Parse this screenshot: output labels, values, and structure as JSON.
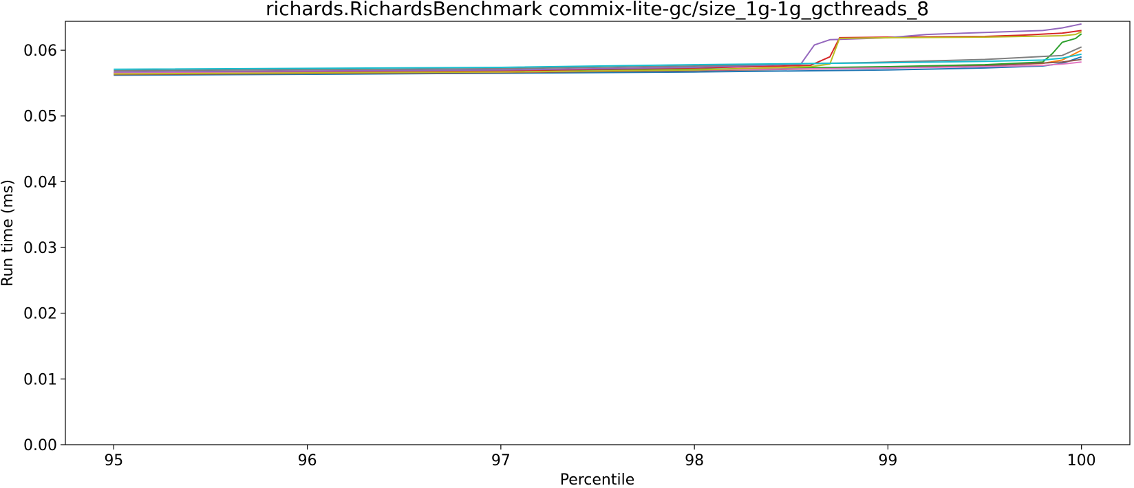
{
  "chart_data": {
    "type": "line",
    "title": "richards.RichardsBenchmark commix-lite-gc/size_1g-1g_gcthreads_8",
    "xlabel": "Percentile",
    "ylabel": "Run time (ms)",
    "xlim": [
      94.75,
      100.25
    ],
    "ylim": [
      0.0,
      0.0644
    ],
    "xticks": [
      95,
      96,
      97,
      98,
      99,
      100
    ],
    "xtick_labels": [
      "95",
      "96",
      "97",
      "98",
      "99",
      "100"
    ],
    "yticks": [
      0.0,
      0.01,
      0.02,
      0.03,
      0.04,
      0.05,
      0.06
    ],
    "ytick_labels": [
      "0.00",
      "0.01",
      "0.02",
      "0.03",
      "0.04",
      "0.05",
      "0.06"
    ],
    "grid": false,
    "legend": "none",
    "series": [
      {
        "color": "#1f77b4",
        "x": [
          95,
          97,
          98,
          99,
          99.5,
          99.8,
          99.9,
          100
        ],
        "y": [
          0.0562,
          0.0565,
          0.0567,
          0.057,
          0.0573,
          0.0576,
          0.058,
          0.059
        ]
      },
      {
        "color": "#ff7f0e",
        "x": [
          95,
          97,
          98,
          99,
          99.5,
          99.8,
          99.9,
          100
        ],
        "y": [
          0.0564,
          0.0567,
          0.057,
          0.0574,
          0.0577,
          0.058,
          0.0585,
          0.06
        ]
      },
      {
        "color": "#2ca02c",
        "x": [
          95,
          97,
          98,
          99,
          99.5,
          99.8,
          99.85,
          99.9,
          99.97,
          100
        ],
        "y": [
          0.0565,
          0.0568,
          0.0571,
          0.0575,
          0.0578,
          0.0582,
          0.0595,
          0.0612,
          0.0618,
          0.0625
        ]
      },
      {
        "color": "#d62728",
        "x": [
          95,
          97,
          98,
          98.6,
          98.7,
          98.75,
          99,
          99.5,
          99.7,
          99.9,
          100
        ],
        "y": [
          0.0566,
          0.0569,
          0.0573,
          0.0577,
          0.059,
          0.0619,
          0.062,
          0.0621,
          0.0623,
          0.0626,
          0.063
        ]
      },
      {
        "color": "#9467bd",
        "x": [
          95,
          97,
          98,
          98.55,
          98.62,
          98.7,
          99,
          99.2,
          99.5,
          99.8,
          99.9,
          100
        ],
        "y": [
          0.0567,
          0.057,
          0.0574,
          0.0579,
          0.0608,
          0.0616,
          0.0619,
          0.0624,
          0.0627,
          0.063,
          0.0634,
          0.064
        ]
      },
      {
        "color": "#8c564b",
        "x": [
          95,
          97,
          98,
          99,
          99.5,
          99.7,
          99.9,
          100
        ],
        "y": [
          0.0563,
          0.0566,
          0.0569,
          0.0573,
          0.0576,
          0.0579,
          0.0582,
          0.0586
        ]
      },
      {
        "color": "#e377c2",
        "x": [
          95,
          97,
          98,
          99,
          99.5,
          99.8,
          99.9,
          100
        ],
        "y": [
          0.0565,
          0.0567,
          0.057,
          0.0573,
          0.0575,
          0.0577,
          0.0579,
          0.0582
        ]
      },
      {
        "color": "#7f7f7f",
        "x": [
          95,
          97,
          98,
          99,
          99.5,
          99.7,
          99.9,
          100
        ],
        "y": [
          0.0569,
          0.0572,
          0.0576,
          0.0582,
          0.0586,
          0.0589,
          0.0592,
          0.0605
        ]
      },
      {
        "color": "#bcbd22",
        "x": [
          95,
          97,
          98,
          98.6,
          98.7,
          98.75,
          99,
          99.5,
          99.7,
          99.9,
          99.97,
          100
        ],
        "y": [
          0.0564,
          0.0567,
          0.057,
          0.0575,
          0.0579,
          0.0618,
          0.0619,
          0.062,
          0.0621,
          0.0622,
          0.0624,
          0.0628
        ]
      },
      {
        "color": "#17becf",
        "x": [
          95,
          97,
          98,
          99,
          99.5,
          99.8,
          99.9,
          100
        ],
        "y": [
          0.0571,
          0.0574,
          0.0578,
          0.0581,
          0.0583,
          0.0585,
          0.0588,
          0.0594
        ]
      }
    ]
  }
}
